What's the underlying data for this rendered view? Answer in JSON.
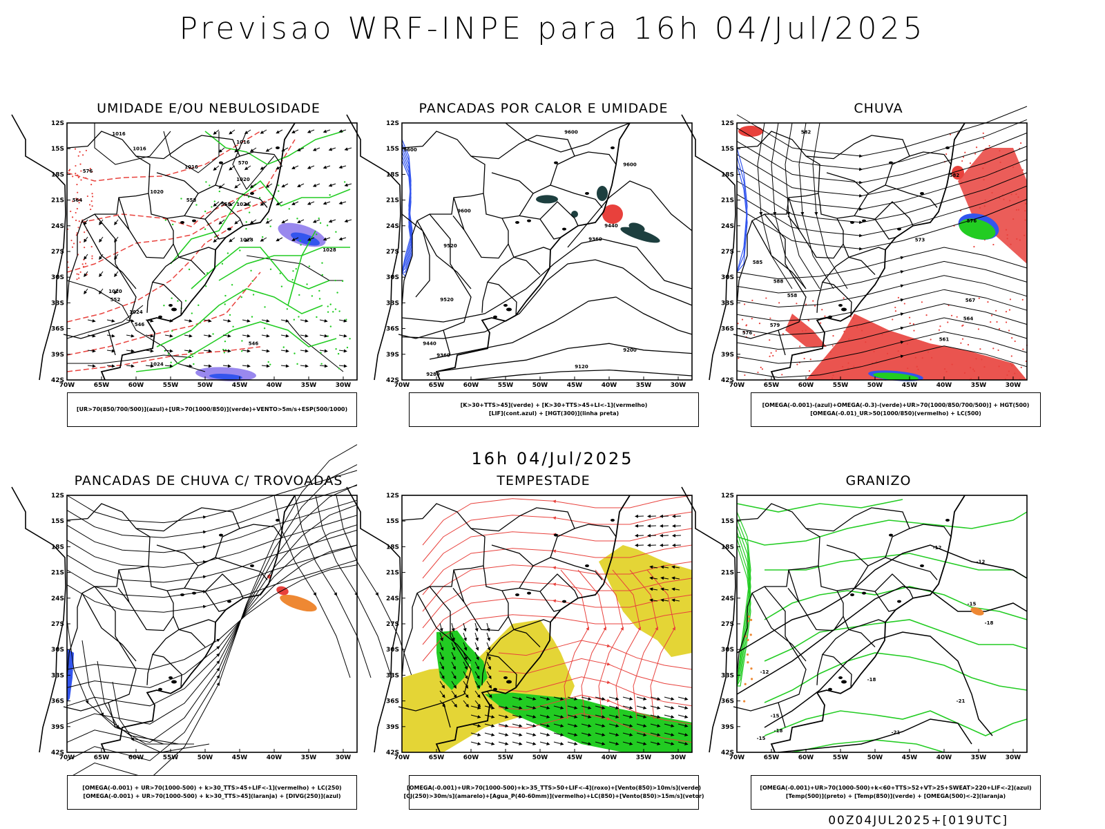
{
  "title": "Previsao WRF-INPE  para 16h 04/Jul/2025",
  "subtitle": "16h 04/Jul/2025",
  "run_info": "00Z04JUL2025+[019UTC]",
  "lat_labels": [
    "12S",
    "15S",
    "18S",
    "21S",
    "24S",
    "27S",
    "30S",
    "33S",
    "36S",
    "39S",
    "42S"
  ],
  "lon_labels": [
    "70W",
    "65W",
    "60W",
    "55W",
    "50W",
    "45W",
    "40W",
    "35W",
    "30W"
  ],
  "colors": {
    "red": "#e8413c",
    "green": "#22cc22",
    "blue": "#3355ee",
    "purple": "#9988ee",
    "yellow": "#e4d536",
    "orange": "#ee8833",
    "darkteal": "#1d3f3f"
  },
  "panels": [
    {
      "title": "UMIDADE E/OU NEBULOSIDADE",
      "legend": [
        "[UR>70(850/700/500)](azul)+[UR>70(1000/850)](verde)+VENTO>5m/s+ESP(500/1000)"
      ],
      "contour_labels": [
        "1016",
        "1016",
        "1016",
        "1016",
        "1020",
        "1020",
        "1024",
        "1024",
        "1028",
        "1028",
        "1024",
        "1020",
        "570",
        "576",
        "564",
        "558",
        "552",
        "546",
        "546",
        "558"
      ]
    },
    {
      "title": "PANCADAS POR CALOR E UMIDADE",
      "legend": [
        "[K>30+TTS>45](verde) + [K>30+TTS>45+LI<-1](vermelho)",
        "[LIF](cont.azul) + [HGT(300)](linha preta)"
      ],
      "contour_labels": [
        "9600",
        "9600",
        "9600",
        "9600",
        "9520",
        "9440",
        "9440",
        "9360",
        "9360",
        "9280",
        "9200",
        "9120",
        "9520"
      ]
    },
    {
      "title": "CHUVA",
      "legend": [
        "[OMEGA(-0.001)-(azul)+OMEGA(-0.3)-(verde)+UR>70(1000/850/700/500)] + HGT(500)",
        "[OMEGA(-0.01)_UR>50(1000/850)(vermelho) + LC(500)"
      ],
      "contour_labels": [
        "582",
        "585",
        "576",
        "573",
        "567",
        "564",
        "561",
        "558",
        "579",
        "588",
        "582",
        "576"
      ]
    },
    {
      "title": "PANCADAS DE CHUVA C/ TROVOADAS",
      "legend": [
        "[OMEGA(-0.001) + UR>70(1000-500) + k>30_TTS>45+LIF<-1](vermelho) + LC(250)",
        "[OMEGA(-0.001) + UR>70(1000-500) + k>30_TTS>45](laranja) + [DIVG(250)](azul)"
      ],
      "contour_labels": []
    },
    {
      "title": "TEMPESTADE",
      "legend": [
        "[OMEGA(-0.001)+UR>70(1000-500)+k>35_TTS>50+LIF<-4](roxo)+[Vento(850)>10m/s](verde)",
        "[CJ(250)>30m/s](amarelo)+[Agua_P(40-60mm)](vermelho)+LC(850)+[Vento(850)>15m/s](vetor)"
      ],
      "contour_labels": []
    },
    {
      "title": "GRANIZO",
      "legend": [
        "[OMEGA(-0.001)+UR>70(1000-500)+k<60+TTS>52+VT>25+SWEAT>220+LIF<-2](azul)",
        "[Temp(500)](preto) + [Temp(850)](verde) + [OMEGA(500)<-2](laranja)"
      ],
      "contour_labels": [
        "-12",
        "-15",
        "-18",
        "-18",
        "-21",
        "-21",
        "-15",
        "-12",
        "-18",
        "-15",
        "-12"
      ]
    }
  ]
}
